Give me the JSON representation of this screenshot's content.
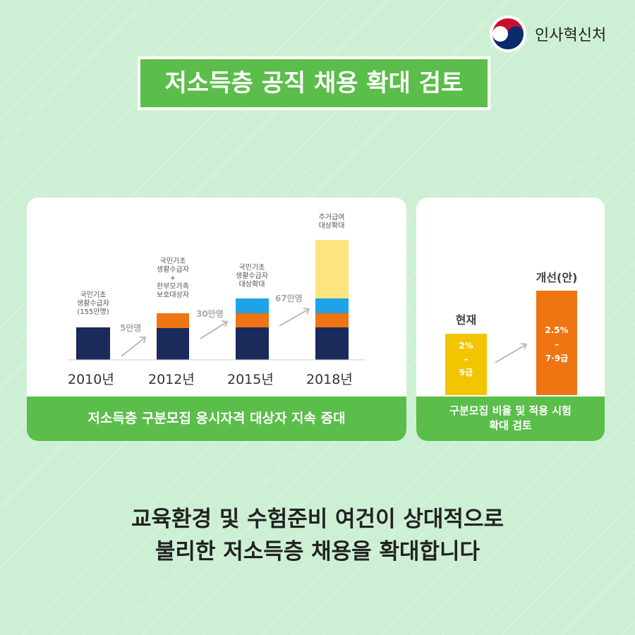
{
  "logo": "인사혁신처",
  "title": "저소득층 공직 채용 확대 검토",
  "left_panel": {
    "columns": [
      {
        "year": "2010년",
        "label": [
          "국민기초",
          "생활수급자",
          "(155만명)"
        ]
      },
      {
        "year": "2012년",
        "label": [
          "국민기초",
          "생활수급자",
          "+",
          "한부모가족",
          "보호대상자"
        ]
      },
      {
        "year": "2015년",
        "label": [
          "국민기초",
          "생활수급자",
          "대상확대"
        ]
      },
      {
        "year": "2018년",
        "label": [
          "주거급여",
          "대상확대"
        ]
      }
    ],
    "arrows": [
      "5만명",
      "30만명",
      "67만명"
    ],
    "caption": "저소득층 구분모집 응시자격 대상자 지속 증대"
  },
  "right_panel": {
    "current": {
      "label": "현재",
      "lines": [
        "2%",
        "–",
        "9급"
      ]
    },
    "improved": {
      "label": "개선(안)",
      "lines": [
        "2.5%",
        "–",
        "7·9급"
      ]
    },
    "caption": [
      "구분모집 비율 및 적용 시험",
      "확대 검토"
    ]
  },
  "footer": [
    "교육환경 및 수험준비 여건이 상대적으로",
    "불리한 저소득층 채용을 확대합니다"
  ]
}
